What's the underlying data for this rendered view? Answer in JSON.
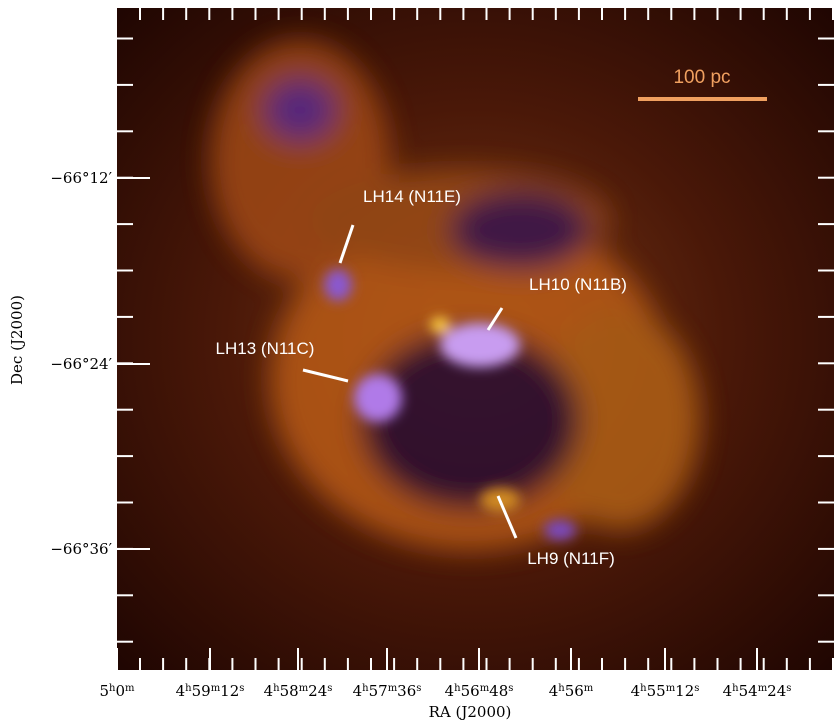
{
  "figure": {
    "x_axis": {
      "label": "RA (J2000)",
      "ticks": [
        [
          "5",
          "h",
          "0",
          "m"
        ],
        [
          "4",
          "h",
          "59",
          "m",
          "12",
          "s"
        ],
        [
          "4",
          "h",
          "58",
          "m",
          "24",
          "s"
        ],
        [
          "4",
          "h",
          "57",
          "m",
          "36",
          "s"
        ],
        [
          "4",
          "h",
          "56",
          "m",
          "48",
          "s"
        ],
        [
          "4",
          "h",
          "56",
          "m"
        ],
        [
          "4",
          "h",
          "55",
          "m",
          "12",
          "s"
        ],
        [
          "4",
          "h",
          "54",
          "m",
          "24",
          "s"
        ]
      ]
    },
    "y_axis": {
      "label": "Dec (J2000)",
      "ticks": [
        "−66°12′",
        "−66°24′",
        "−66°36′"
      ]
    },
    "scale_bar": "100 pc",
    "annotations": [
      "LH14 (N11E)",
      "LH10 (N11B)",
      "LH13 (N11C)",
      "LH9 (N11F)"
    ]
  }
}
